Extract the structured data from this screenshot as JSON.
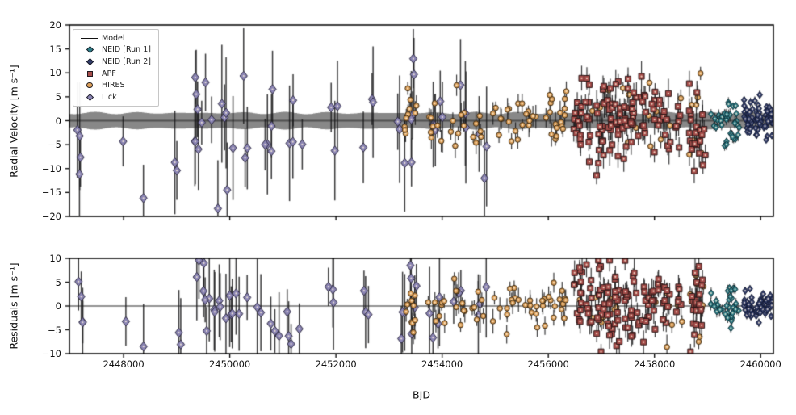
{
  "chart_data": {
    "type": "scatter",
    "title": "",
    "xlabel": "BJD",
    "x_range": [
      2446980,
      2460240
    ],
    "x_tick_values": [
      2448000,
      2450000,
      2452000,
      2454000,
      2456000,
      2458000,
      2460000
    ],
    "x_tick_labels": [
      "2448000",
      "2450000",
      "2452000",
      "2454000",
      "2456000",
      "2458000",
      "2460000"
    ],
    "grid": false,
    "legend_position": "upper left",
    "panels": [
      {
        "name": "radial-velocity",
        "ylabel": "Radial Velocity [m s⁻¹]",
        "ylim": [
          -20,
          20
        ],
        "y_tick_values": [
          20,
          15,
          10,
          5,
          0,
          -5,
          -10,
          -15,
          -20
        ],
        "y_tick_labels": [
          "20",
          "15",
          "10",
          "5",
          "0",
          "−5",
          "−10",
          "−15",
          "−20"
        ]
      },
      {
        "name": "residuals",
        "ylabel": "Residuals [m s⁻¹]",
        "ylim": [
          -10,
          10
        ],
        "y_tick_values": [
          10,
          5,
          0,
          -5,
          -10
        ],
        "y_tick_labels": [
          "10",
          "5",
          "0",
          "−5",
          "−10"
        ]
      }
    ],
    "model": {
      "label": "Model",
      "color": "#111111",
      "amplitude_ms": 1.6,
      "residual_value": 0
    },
    "seed": 1337,
    "series": [
      {
        "name": "Lick",
        "marker": "diamond",
        "color": "#8b85b4",
        "edge": "#2c2840",
        "size": 4.6,
        "err_rv": [
          4.5,
          13
        ],
        "err_resid": [
          4,
          11
        ],
        "bar_width": 1.5,
        "clusters_rv": [
          [
            2447100,
            2447260,
            4,
            -5,
            4.5
          ],
          [
            2447900,
            2448060,
            1,
            -4.3,
            0.1
          ],
          [
            2448350,
            2448470,
            1,
            -16,
            0.1
          ],
          [
            2448950,
            2449080,
            2,
            -10,
            3.5
          ],
          [
            2449280,
            2449720,
            9,
            1,
            7
          ],
          [
            2449740,
            2450350,
            9,
            0,
            7
          ],
          [
            2450420,
            2450950,
            5,
            -2,
            5
          ],
          [
            2451050,
            2451400,
            4,
            -2,
            6.5
          ],
          [
            2451800,
            2452150,
            3,
            -3,
            6
          ],
          [
            2452450,
            2452750,
            3,
            0,
            5
          ],
          [
            2453150,
            2453360,
            3,
            -3,
            6
          ],
          [
            2453380,
            2453520,
            5,
            4,
            4.5
          ],
          [
            2453700,
            2454020,
            4,
            0,
            5
          ],
          [
            2454200,
            2454500,
            3,
            2,
            4
          ],
          [
            2454650,
            2454860,
            3,
            0,
            6
          ]
        ],
        "clusters_resid": [
          [
            2447100,
            2447260,
            4,
            -2,
            3.5
          ],
          [
            2447900,
            2448060,
            1,
            -3.2,
            0.1
          ],
          [
            2448350,
            2448470,
            1,
            -8.5,
            0.1
          ],
          [
            2448950,
            2449080,
            2,
            -6,
            2.5
          ],
          [
            2449280,
            2449720,
            9,
            1,
            5
          ],
          [
            2449740,
            2450350,
            9,
            0,
            5
          ],
          [
            2450420,
            2450950,
            5,
            -2,
            4
          ],
          [
            2451050,
            2451400,
            4,
            -1,
            5
          ],
          [
            2451800,
            2452150,
            3,
            -2,
            4.5
          ],
          [
            2452450,
            2452750,
            3,
            0,
            4
          ],
          [
            2453150,
            2453360,
            3,
            -2,
            4.5
          ],
          [
            2453380,
            2453520,
            5,
            2,
            3.5
          ],
          [
            2453700,
            2454020,
            4,
            0,
            4
          ],
          [
            2454200,
            2454500,
            3,
            1.5,
            3.5
          ],
          [
            2454650,
            2454860,
            3,
            0,
            4.5
          ]
        ]
      },
      {
        "name": "HIRES",
        "marker": "circle",
        "color": "#dda05a",
        "edge": "#3c2a12",
        "size": 3.3,
        "err_rv": [
          1.2,
          2.6
        ],
        "err_resid": [
          1.2,
          2.6
        ],
        "bar_width": 1.2,
        "clusters_rv": [
          [
            2453290,
            2453520,
            10,
            2,
            4
          ],
          [
            2453700,
            2454100,
            8,
            -1,
            2.5
          ],
          [
            2454150,
            2454460,
            8,
            1.5,
            3
          ],
          [
            2454550,
            2454800,
            6,
            -1,
            2
          ],
          [
            2454950,
            2455460,
            12,
            0,
            3
          ],
          [
            2455500,
            2455820,
            8,
            -0.5,
            2.5
          ],
          [
            2455860,
            2456160,
            10,
            0.5,
            3
          ],
          [
            2456200,
            2456360,
            8,
            0,
            3.5
          ],
          [
            2456500,
            2457600,
            10,
            0,
            3.5
          ],
          [
            2457650,
            2458550,
            8,
            0,
            3.5
          ],
          [
            2458650,
            2458930,
            10,
            0,
            4.5
          ]
        ],
        "clusters_resid": [
          [
            2453290,
            2453520,
            10,
            1,
            3.2
          ],
          [
            2453700,
            2454100,
            8,
            -1,
            2.2
          ],
          [
            2454150,
            2454460,
            8,
            1,
            2.6
          ],
          [
            2454550,
            2454800,
            6,
            -1,
            1.8
          ],
          [
            2454950,
            2455460,
            12,
            0,
            2.6
          ],
          [
            2455500,
            2455820,
            8,
            -0.5,
            2.2
          ],
          [
            2455860,
            2456160,
            10,
            0.5,
            2.6
          ],
          [
            2456200,
            2456360,
            8,
            0,
            3
          ],
          [
            2456500,
            2457600,
            10,
            0,
            3
          ],
          [
            2457650,
            2458550,
            8,
            0,
            3
          ],
          [
            2458650,
            2458930,
            10,
            0,
            3.8
          ]
        ]
      },
      {
        "name": "APF",
        "marker": "square",
        "color": "#a64d4a",
        "edge": "#2d1717",
        "size": 3.5,
        "err_rv": [
          1.5,
          3.2
        ],
        "err_resid": [
          1.5,
          3
        ],
        "bar_width": 1.2,
        "clusters_rv": [
          [
            2456480,
            2456640,
            14,
            1,
            4
          ],
          [
            2456700,
            2456820,
            10,
            0,
            4.5
          ],
          [
            2456900,
            2457060,
            16,
            0.5,
            5
          ],
          [
            2457100,
            2457210,
            12,
            0,
            4
          ],
          [
            2457250,
            2457360,
            12,
            1,
            4.5
          ],
          [
            2457400,
            2457510,
            10,
            -1,
            4
          ],
          [
            2457550,
            2457710,
            12,
            0.5,
            4.5
          ],
          [
            2457750,
            2457910,
            10,
            0,
            4
          ],
          [
            2457950,
            2458110,
            10,
            0,
            4
          ],
          [
            2458150,
            2458310,
            8,
            1,
            3.5
          ],
          [
            2458400,
            2458510,
            6,
            0,
            3
          ],
          [
            2458650,
            2458810,
            14,
            0,
            5.5
          ],
          [
            2458830,
            2458960,
            8,
            -1,
            5
          ]
        ],
        "clusters_resid": [
          [
            2456480,
            2456640,
            14,
            1,
            3.6
          ],
          [
            2456700,
            2456820,
            10,
            0,
            4
          ],
          [
            2456900,
            2457060,
            16,
            0.5,
            4.4
          ],
          [
            2457100,
            2457210,
            12,
            0,
            3.6
          ],
          [
            2457250,
            2457360,
            12,
            1,
            4
          ],
          [
            2457400,
            2457510,
            10,
            -1,
            3.6
          ],
          [
            2457550,
            2457710,
            12,
            0.5,
            4
          ],
          [
            2457750,
            2457910,
            10,
            0,
            3.6
          ],
          [
            2457950,
            2458110,
            10,
            0,
            3.6
          ],
          [
            2458150,
            2458310,
            8,
            1,
            3.2
          ],
          [
            2458400,
            2458510,
            6,
            0,
            2.8
          ],
          [
            2458650,
            2458810,
            14,
            0,
            5
          ],
          [
            2458830,
            2458960,
            8,
            -1,
            4.5
          ]
        ]
      },
      {
        "name": "NEID [Run 1]",
        "marker": "diamond",
        "color": "#2d7d88",
        "edge": "#0f2f35",
        "size": 3.4,
        "err_rv": [
          0.7,
          1.4
        ],
        "err_resid": [
          0.7,
          1.4
        ],
        "bar_width": 1,
        "clusters_rv": [
          [
            2459060,
            2459280,
            10,
            0.8,
            1.4
          ],
          [
            2459320,
            2459600,
            25,
            0,
            2.6
          ]
        ],
        "clusters_resid": [
          [
            2459060,
            2459280,
            10,
            0.3,
            1.2
          ],
          [
            2459320,
            2459600,
            25,
            -0.3,
            2.0
          ]
        ]
      },
      {
        "name": "NEID [Run 2]",
        "marker": "diamond",
        "color": "#323d6b",
        "edge": "#131a33",
        "size": 3.4,
        "err_rv": [
          0.5,
          1.0
        ],
        "err_resid": [
          0.5,
          1.0
        ],
        "bar_width": 1,
        "clusters_rv": [
          [
            2459680,
            2459860,
            26,
            0.5,
            1.8
          ],
          [
            2459890,
            2460060,
            22,
            0,
            1.7
          ],
          [
            2460080,
            2460240,
            22,
            0.3,
            1.8
          ]
        ],
        "clusters_resid": [
          [
            2459680,
            2459860,
            26,
            0,
            1.4
          ],
          [
            2459890,
            2460060,
            22,
            -0.2,
            1.3
          ],
          [
            2460080,
            2460240,
            22,
            0,
            1.4
          ]
        ]
      }
    ]
  },
  "legend": {
    "entries": [
      {
        "label": "Model",
        "type": "line",
        "color": "#111111"
      },
      {
        "label": "NEID [Run 1]",
        "type": "diamond",
        "color": "#2d7d88"
      },
      {
        "label": "NEID [Run 2]",
        "type": "diamond",
        "color": "#323d6b"
      },
      {
        "label": "APF",
        "type": "square",
        "color": "#a64d4a"
      },
      {
        "label": "HIRES",
        "type": "circle",
        "color": "#dda05a"
      },
      {
        "label": "Lick",
        "type": "diamond",
        "color": "#8b85b4"
      }
    ]
  }
}
